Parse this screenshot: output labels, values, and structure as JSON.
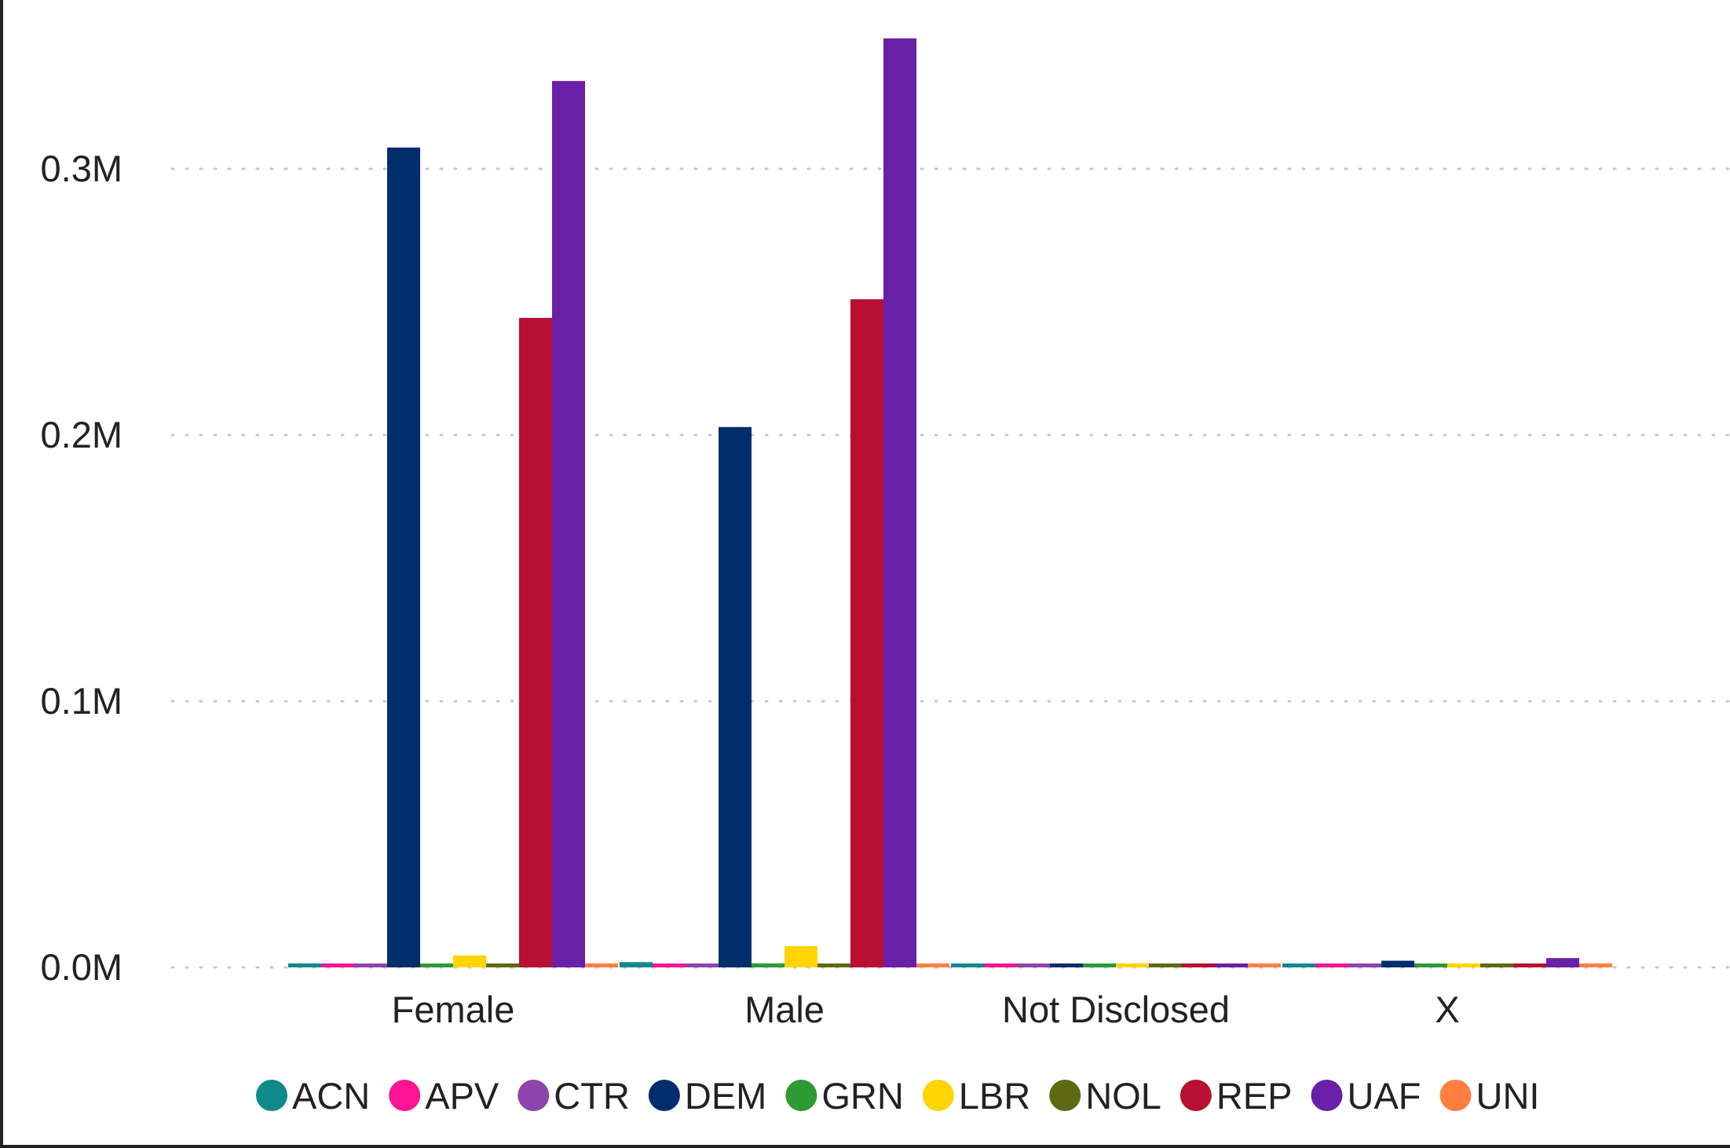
{
  "chart_data": {
    "type": "bar",
    "categories": [
      "Female",
      "Male",
      "Not Disclosed",
      "X"
    ],
    "y_ticks": [
      "0.0M",
      "0.1M",
      "0.2M",
      "0.3M"
    ],
    "y_tick_values": [
      0,
      100000,
      200000,
      300000
    ],
    "ylim": [
      0,
      350000
    ],
    "grid": true,
    "legend_position": "bottom",
    "series": [
      {
        "name": "ACN",
        "color": "#0e8a8a",
        "values": [
          1500,
          2000,
          200,
          100
        ]
      },
      {
        "name": "APV",
        "color": "#ff1493",
        "values": [
          800,
          1000,
          100,
          100
        ]
      },
      {
        "name": "CTR",
        "color": "#8e44ad",
        "values": [
          500,
          700,
          100,
          100
        ]
      },
      {
        "name": "DEM",
        "color": "#002d6b",
        "values": [
          308000,
          203000,
          300,
          2500
        ]
      },
      {
        "name": "GRN",
        "color": "#2e9a34",
        "values": [
          1000,
          1500,
          100,
          100
        ]
      },
      {
        "name": "LBR",
        "color": "#ffd400",
        "values": [
          4500,
          8000,
          100,
          200
        ]
      },
      {
        "name": "NOL",
        "color": "#5e6a12",
        "values": [
          1200,
          1400,
          100,
          100
        ]
      },
      {
        "name": "REP",
        "color": "#b80f32",
        "values": [
          244000,
          251000,
          300,
          1200
        ]
      },
      {
        "name": "UAF",
        "color": "#6a1fa8",
        "values": [
          333000,
          349000,
          300,
          3500
        ]
      },
      {
        "name": "UNI",
        "color": "#ff7f40",
        "values": [
          1100,
          1300,
          100,
          100
        ]
      }
    ],
    "title": "",
    "xlabel": "",
    "ylabel": ""
  }
}
